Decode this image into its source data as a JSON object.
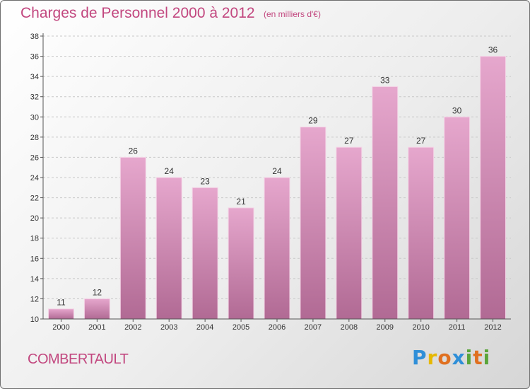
{
  "title": "Charges de Personnel 2000 à 2012",
  "subtitle": "(en milliers d'€)",
  "commune": "COMBERTAULT",
  "logo": {
    "letters": [
      "P",
      "r",
      "o",
      "x",
      "i",
      "t",
      "i"
    ],
    "colors": [
      "#2f8fd8",
      "#e6b800",
      "#e07020",
      "#2f8fd8",
      "#5aa53a",
      "#e07020",
      "#5aa53a"
    ]
  },
  "colors": {
    "accent": "#c2477f",
    "bar_top": "#e6a7cd",
    "bar_bottom": "#b16a94",
    "grid": "#c8c8c8",
    "axis": "#555555"
  },
  "chart_data": {
    "type": "bar",
    "title": "Charges de Personnel 2000 à 2012",
    "subtitle": "(en milliers d'€)",
    "categories": [
      "2000",
      "2001",
      "2002",
      "2003",
      "2004",
      "2005",
      "2006",
      "2007",
      "2008",
      "2009",
      "2010",
      "2011",
      "2012"
    ],
    "values": [
      11,
      12,
      26,
      24,
      23,
      21,
      24,
      29,
      27,
      33,
      27,
      30,
      36
    ],
    "ylim": [
      10,
      38
    ],
    "yticks": [
      10,
      12,
      14,
      16,
      18,
      20,
      22,
      24,
      26,
      28,
      30,
      32,
      34,
      36,
      38
    ],
    "grid": true,
    "data_labels": true
  }
}
